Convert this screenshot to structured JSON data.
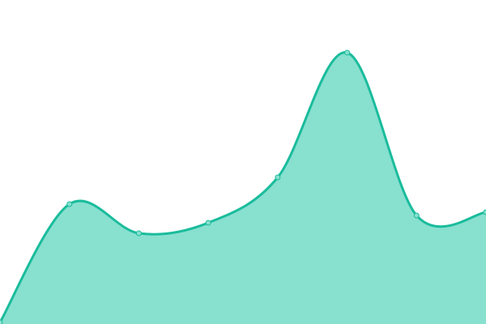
{
  "chart_data": {
    "type": "area",
    "title": "",
    "xlabel": "",
    "ylabel": "",
    "x": [
      0,
      1,
      2,
      3,
      4,
      5,
      6,
      7
    ],
    "values": [
      2,
      148,
      112,
      125,
      181,
      335,
      134,
      138
    ],
    "ylim": [
      0,
      400
    ],
    "grid": false,
    "axes_visible": false,
    "smooth": true,
    "markers": true,
    "colors": {
      "line": "#1abc9c",
      "fill": "#88e0cf",
      "marker_fill": "#88e0cf",
      "marker_stroke": "#1abc9c"
    }
  }
}
